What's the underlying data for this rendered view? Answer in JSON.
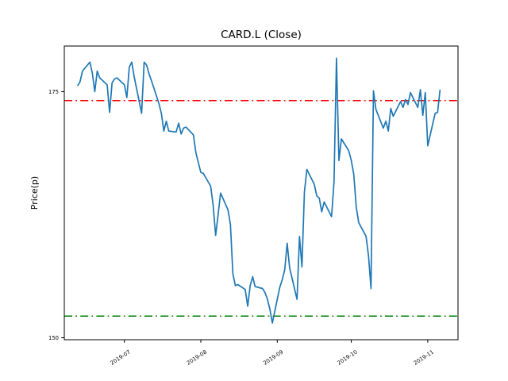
{
  "chart_data": {
    "type": "line",
    "title": "CARD.L (Close)",
    "xlabel": "",
    "ylabel": "Price(p)",
    "background": "#ffffff",
    "grid": false,
    "legend": null,
    "ylim": [
      149.8,
      179.6
    ],
    "x_ticks": [
      {
        "date": "2019-07-01",
        "label": "2019-07"
      },
      {
        "date": "2019-08-01",
        "label": "2019-08"
      },
      {
        "date": "2019-09-01",
        "label": "2019-09"
      },
      {
        "date": "2019-10-01",
        "label": "2019-10"
      },
      {
        "date": "2019-11-01",
        "label": "2019-11"
      }
    ],
    "y_ticks": [
      {
        "value": 150,
        "label": "150"
      },
      {
        "value": 175,
        "label": "175"
      }
    ],
    "hlines": [
      {
        "name": "upper-threshold",
        "value": 174.1,
        "color": "#ff0000",
        "style": "dashdot"
      },
      {
        "name": "lower-threshold",
        "value": 152.2,
        "color": "#008000",
        "style": "dashdot"
      }
    ],
    "series": [
      {
        "name": "Close",
        "color": "#1f77b4",
        "style": "solid",
        "dates": [
          "2019-06-12",
          "2019-06-13",
          "2019-06-14",
          "2019-06-17",
          "2019-06-18",
          "2019-06-19",
          "2019-06-20",
          "2019-06-21",
          "2019-06-24",
          "2019-06-25",
          "2019-06-26",
          "2019-06-27",
          "2019-06-28",
          "2019-07-01",
          "2019-07-02",
          "2019-07-03",
          "2019-07-04",
          "2019-07-05",
          "2019-07-08",
          "2019-07-09",
          "2019-07-10",
          "2019-07-11",
          "2019-07-12",
          "2019-07-15",
          "2019-07-16",
          "2019-07-17",
          "2019-07-18",
          "2019-07-19",
          "2019-07-22",
          "2019-07-23",
          "2019-07-24",
          "2019-07-25",
          "2019-07-26",
          "2019-07-29",
          "2019-07-30",
          "2019-07-31",
          "2019-08-01",
          "2019-08-02",
          "2019-08-05",
          "2019-08-06",
          "2019-08-07",
          "2019-08-08",
          "2019-08-09",
          "2019-08-12",
          "2019-08-13",
          "2019-08-14",
          "2019-08-15",
          "2019-08-16",
          "2019-08-19",
          "2019-08-20",
          "2019-08-21",
          "2019-08-22",
          "2019-08-23",
          "2019-08-26",
          "2019-08-27",
          "2019-08-28",
          "2019-08-29",
          "2019-08-30",
          "2019-09-02",
          "2019-09-03",
          "2019-09-04",
          "2019-09-05",
          "2019-09-06",
          "2019-09-09",
          "2019-09-10",
          "2019-09-11",
          "2019-09-12",
          "2019-09-13",
          "2019-09-16",
          "2019-09-17",
          "2019-09-18",
          "2019-09-19",
          "2019-09-20",
          "2019-09-23",
          "2019-09-24",
          "2019-09-25",
          "2019-09-26",
          "2019-09-27",
          "2019-09-30",
          "2019-10-01",
          "2019-10-02",
          "2019-10-03",
          "2019-10-04",
          "2019-10-07",
          "2019-10-08",
          "2019-10-09",
          "2019-10-10",
          "2019-10-11",
          "2019-10-14",
          "2019-10-15",
          "2019-10-16",
          "2019-10-17",
          "2019-10-18",
          "2019-10-21",
          "2019-10-22",
          "2019-10-23",
          "2019-10-24",
          "2019-10-25",
          "2019-10-28",
          "2019-10-29",
          "2019-10-30",
          "2019-10-31",
          "2019-11-01",
          "2019-11-04",
          "2019-11-05",
          "2019-11-06"
        ],
        "values": [
          175.6,
          176.0,
          177.1,
          178.0,
          176.9,
          175.0,
          177.1,
          176.4,
          175.7,
          172.9,
          175.9,
          176.3,
          176.4,
          175.7,
          174.4,
          177.5,
          178.0,
          176.5,
          172.8,
          178.0,
          177.7,
          176.8,
          176.1,
          173.8,
          172.8,
          171.0,
          172.0,
          171.0,
          170.9,
          171.8,
          170.7,
          171.3,
          171.4,
          170.6,
          168.8,
          167.8,
          166.8,
          166.7,
          165.4,
          163.4,
          160.4,
          162.5,
          164.7,
          163.0,
          161.5,
          156.5,
          155.3,
          155.4,
          154.9,
          153.2,
          155.3,
          156.2,
          155.2,
          155.0,
          154.6,
          153.9,
          152.9,
          151.5,
          155.1,
          155.9,
          156.9,
          159.6,
          157.1,
          153.9,
          160.3,
          157.2,
          164.8,
          167.1,
          165.6,
          164.4,
          164.2,
          162.8,
          163.8,
          162.3,
          165.8,
          178.4,
          168.0,
          170.2,
          169.0,
          168.0,
          166.6,
          163.3,
          161.7,
          160.3,
          158.3,
          155.0,
          175.1,
          173.2,
          171.3,
          172.0,
          171.0,
          173.3,
          172.5,
          174.0,
          173.4,
          174.2,
          173.7,
          174.9,
          173.4,
          175.2,
          172.6,
          174.9,
          169.5,
          172.8,
          172.9,
          175.2
        ]
      }
    ]
  }
}
